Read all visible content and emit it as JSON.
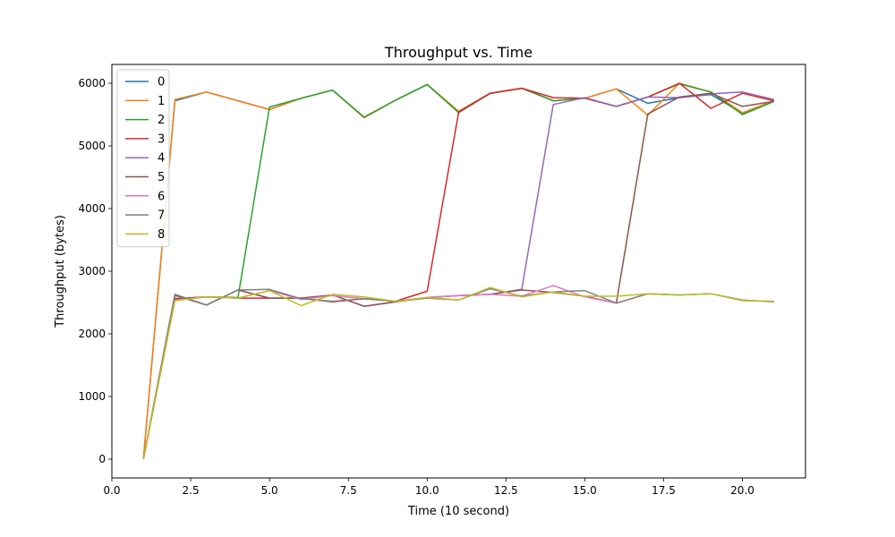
{
  "chart_data": {
    "type": "line",
    "title": "Throughput vs. Time",
    "xlabel": "Time (10 second)",
    "ylabel": "Throughput (bytes)",
    "xlim": [
      0.0,
      22.0
    ],
    "ylim": [
      -300,
      6300
    ],
    "xticks": [
      0.0,
      2.5,
      5.0,
      7.5,
      10.0,
      12.5,
      15.0,
      17.5,
      20.0
    ],
    "xtick_labels": [
      "0.0",
      "2.5",
      "5.0",
      "7.5",
      "10.0",
      "12.5",
      "15.0",
      "17.5",
      "20.0"
    ],
    "yticks": [
      0,
      1000,
      2000,
      3000,
      4000,
      5000,
      6000
    ],
    "ytick_labels": [
      "0",
      "1000",
      "2000",
      "3000",
      "4000",
      "5000",
      "6000"
    ],
    "grid": false,
    "legend_position": "top-left",
    "x": [
      1,
      2,
      3,
      4,
      5,
      6,
      7,
      8,
      9,
      10,
      11,
      12,
      13,
      14,
      15,
      16,
      17,
      18,
      19,
      20,
      21
    ],
    "series": [
      {
        "name": "0",
        "color": "#1f77b4",
        "values": [
          0,
          5720,
          5860,
          5720,
          5580,
          5760,
          5890,
          5450,
          5730,
          5980,
          5550,
          5840,
          5920,
          5720,
          5760,
          5910,
          5680,
          5770,
          5820,
          5520,
          5720
        ]
      },
      {
        "name": "1",
        "color": "#ff7f0e",
        "values": [
          0,
          5740,
          5860,
          5720,
          5580,
          5760,
          5890,
          5450,
          5730,
          5980,
          5550,
          5840,
          5920,
          5720,
          5760,
          5910,
          5490,
          6000,
          5860,
          5530,
          5720
        ]
      },
      {
        "name": "2",
        "color": "#2ca02c",
        "values": [
          0,
          2560,
          2590,
          2580,
          5620,
          5760,
          5890,
          5460,
          5730,
          5980,
          5530,
          5840,
          5920,
          5720,
          5760,
          5630,
          5780,
          5990,
          5860,
          5500,
          5710
        ]
      },
      {
        "name": "3",
        "color": "#d62728",
        "values": [
          0,
          2560,
          2590,
          2570,
          2570,
          2570,
          2510,
          2560,
          2520,
          2680,
          5540,
          5840,
          5920,
          5770,
          5760,
          5630,
          5780,
          6000,
          5600,
          5840,
          5720
        ]
      },
      {
        "name": "4",
        "color": "#9467bd",
        "values": [
          0,
          2630,
          2460,
          2700,
          2570,
          2570,
          2620,
          2440,
          2510,
          2580,
          2610,
          2630,
          2710,
          5660,
          5770,
          5630,
          5780,
          5770,
          5830,
          5860,
          5740
        ]
      },
      {
        "name": "5",
        "color": "#8c564b",
        "values": [
          0,
          2620,
          2460,
          2700,
          2570,
          2570,
          2620,
          2440,
          2510,
          2580,
          2610,
          2630,
          2700,
          2660,
          2600,
          2490,
          5510,
          5780,
          5840,
          5630,
          5710
        ]
      },
      {
        "name": "6",
        "color": "#e377c2",
        "values": [
          0,
          2540,
          2590,
          2570,
          2690,
          2550,
          2610,
          2560,
          2520,
          2580,
          2610,
          2630,
          2600,
          2770,
          2590,
          2490,
          2640,
          2620,
          2640,
          2530,
          2520
        ]
      },
      {
        "name": "7",
        "color": "#7f7f7f",
        "values": [
          0,
          2610,
          2460,
          2700,
          2710,
          2560,
          2520,
          2560,
          2520,
          2570,
          2540,
          2720,
          2600,
          2670,
          2690,
          2490,
          2640,
          2620,
          2640,
          2540,
          2510
        ]
      },
      {
        "name": "8",
        "color": "#bcbd22",
        "values": [
          0,
          2530,
          2590,
          2570,
          2690,
          2450,
          2630,
          2590,
          2520,
          2580,
          2540,
          2740,
          2590,
          2670,
          2600,
          2600,
          2640,
          2620,
          2640,
          2530,
          2520
        ]
      }
    ]
  }
}
